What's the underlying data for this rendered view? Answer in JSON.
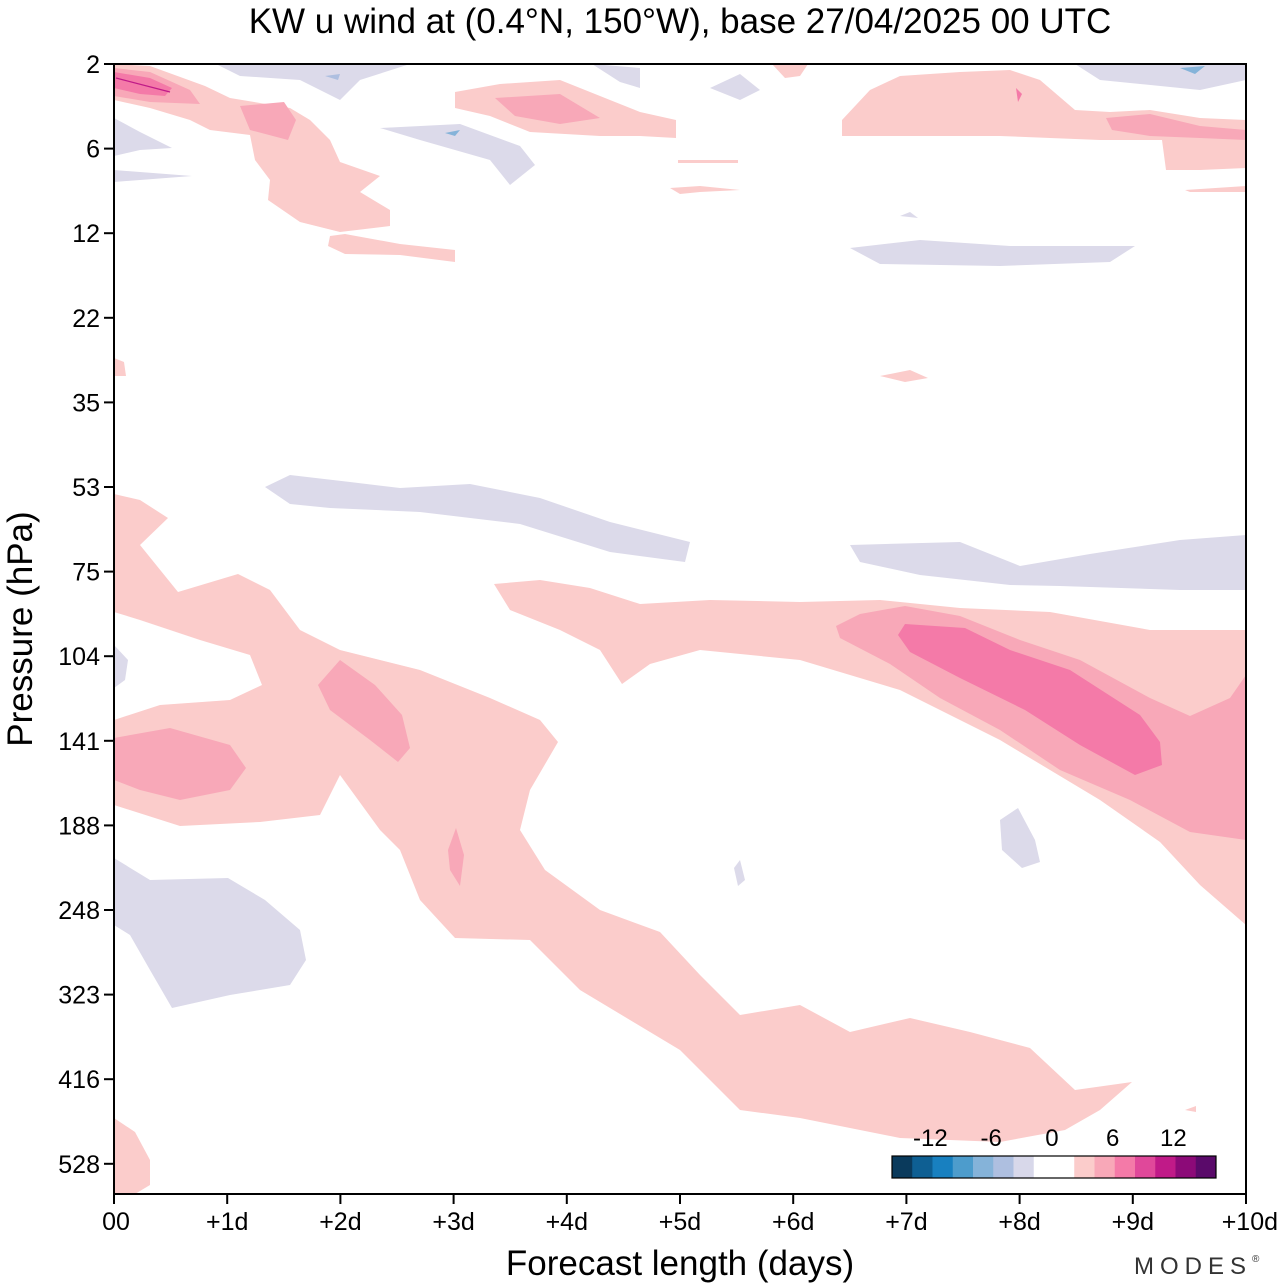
{
  "chart_data": {
    "type": "heatmap",
    "title": "KW u wind at (0.4°N, 150°W),  base 27/04/2025  00 UTC",
    "xlabel": "Forecast length (days)",
    "ylabel": "Pressure (hPa)",
    "x_ticks": [
      "00",
      "+1d",
      "+2d",
      "+3d",
      "+4d",
      "+5d",
      "+6d",
      "+7d",
      "+8d",
      "+9d",
      "+10d"
    ],
    "y_ticks": [
      "2",
      "6",
      "12",
      "22",
      "35",
      "53",
      "75",
      "104",
      "141",
      "188",
      "248",
      "323",
      "416",
      "528"
    ],
    "xlim": [
      0,
      10
    ],
    "colorbar": {
      "labels": [
        "-12",
        "-6",
        "0",
        "6",
        "12"
      ],
      "levels": [
        -16,
        -14,
        -12,
        -10,
        -8,
        -6,
        -4,
        -2,
        2,
        4,
        6,
        8,
        10,
        12,
        14,
        16
      ],
      "colors": [
        "#0a3a5c",
        "#0e5f93",
        "#1880c0",
        "#4d9ccc",
        "#85b3d9",
        "#aebfe0",
        "#d8d8ea",
        "#ffffff",
        "#ffffff",
        "#fbcccb",
        "#f8a8b8",
        "#f47aa8",
        "#e0489a",
        "#c01a88",
        "#8c0a78",
        "#5a0a6a"
      ],
      "placement": "bottom-right"
    },
    "contour_regions": [
      {
        "sign": "positive",
        "max_level": 10,
        "x_range": [
          0,
          0.5
        ],
        "pressure_range": [
          2,
          4
        ]
      },
      {
        "sign": "positive",
        "max_level": 6,
        "x_range": [
          3.4,
          4.3
        ],
        "pressure_range": [
          3,
          5
        ]
      },
      {
        "sign": "positive",
        "max_level": 6,
        "x_range": [
          0,
          1.1
        ],
        "pressure_range": [
          125,
          165
        ]
      },
      {
        "sign": "positive",
        "max_level": 6,
        "x_range": [
          1.8,
          2.6
        ],
        "pressure_range": [
          100,
          150
        ]
      },
      {
        "sign": "positive",
        "max_level": 8,
        "x_range": [
          7,
          9.3
        ],
        "pressure_range": [
          95,
          160
        ]
      },
      {
        "sign": "positive",
        "max_level": 2,
        "x_range": [
          3.4,
          10
        ],
        "pressure_range": [
          75,
          400
        ]
      },
      {
        "sign": "negative",
        "max_level": -2,
        "x_range": [
          1.3,
          5.1
        ],
        "pressure_range": [
          50,
          70
        ]
      },
      {
        "sign": "negative",
        "max_level": -2,
        "x_range": [
          6.5,
          10
        ],
        "pressure_range": [
          65,
          80
        ]
      },
      {
        "sign": "negative",
        "max_level": -2,
        "x_range": [
          0,
          1.7
        ],
        "pressure_range": [
          225,
          320
        ]
      },
      {
        "sign": "negative",
        "max_level": -2,
        "x_range": [
          6.5,
          9
        ],
        "pressure_range": [
          12,
          15
        ]
      }
    ]
  },
  "brand": "MODES"
}
